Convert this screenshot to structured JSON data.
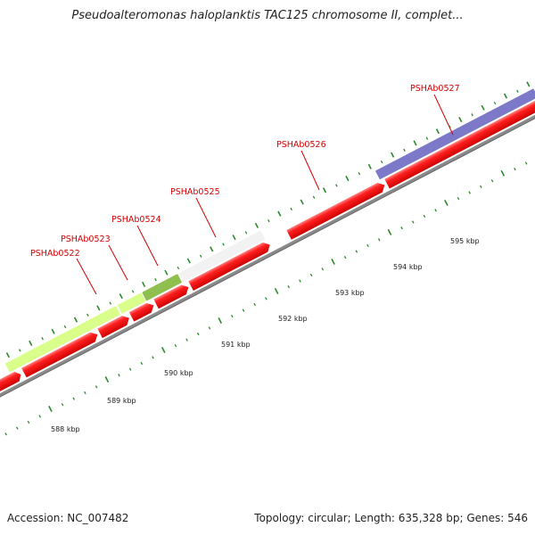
{
  "title": "Pseudoalteromonas haloplanktis TAC125 chromosome II, complet...",
  "footer": {
    "accession": "Accession: NC_007482",
    "stats": "Topology: circular; Length: 635,328 bp; Genes: 546"
  },
  "colors": {
    "cds": "#ff1a1a",
    "backbone": "#8a8a8a",
    "tick": "#2a8a2a",
    "label": "#d40000",
    "feature_lime": "#aaf23a",
    "feature_olive": "#5a8f2a",
    "feature_grey": "#cfcfcf",
    "feature_navy": "#3d3a8f"
  },
  "genes": [
    {
      "label": "PSHAb0522",
      "color": "lime"
    },
    {
      "label": "PSHAb0523",
      "color": "lime"
    },
    {
      "label": "PSHAb0524",
      "color": "olive"
    },
    {
      "label": "PSHAb0525",
      "color": "grey"
    },
    {
      "label": "PSHAb0526",
      "color": "red"
    },
    {
      "label": "PSHAb0527",
      "color": "navy"
    }
  ],
  "scale_labels": [
    "588 kbp",
    "589 kbp",
    "590 kbp",
    "591 kbp",
    "592 kbp",
    "593 kbp",
    "594 kbp",
    "595 kbp"
  ]
}
